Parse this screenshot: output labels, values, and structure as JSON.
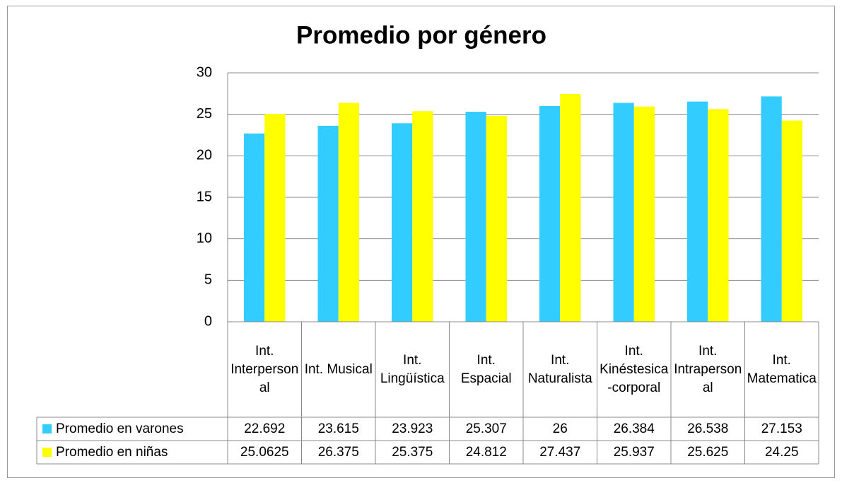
{
  "chart_data": {
    "type": "bar",
    "title": "Promedio por género",
    "categories": [
      "Int. Interpersonal",
      "Int. Musical",
      "Int. Lingüística",
      "Int. Espacial",
      "Int. Naturalista",
      "Int. Kinéstesica-corporal",
      "Int. Intrapersonal",
      "Int. Matematica"
    ],
    "series": [
      {
        "name": "Promedio en varones",
        "color": "#33ccff",
        "values": [
          22.692,
          23.615,
          23.923,
          25.307,
          26,
          26.384,
          26.538,
          27.153
        ]
      },
      {
        "name": "Promedio en niñas",
        "color": "#ffff00",
        "values": [
          25.0625,
          26.375,
          25.375,
          24.812,
          27.437,
          25.937,
          25.625,
          24.25
        ]
      }
    ],
    "ylim": [
      0,
      30
    ],
    "yticks": [
      0,
      5,
      10,
      15,
      20,
      25,
      30
    ],
    "grid": true,
    "data_table": true
  }
}
